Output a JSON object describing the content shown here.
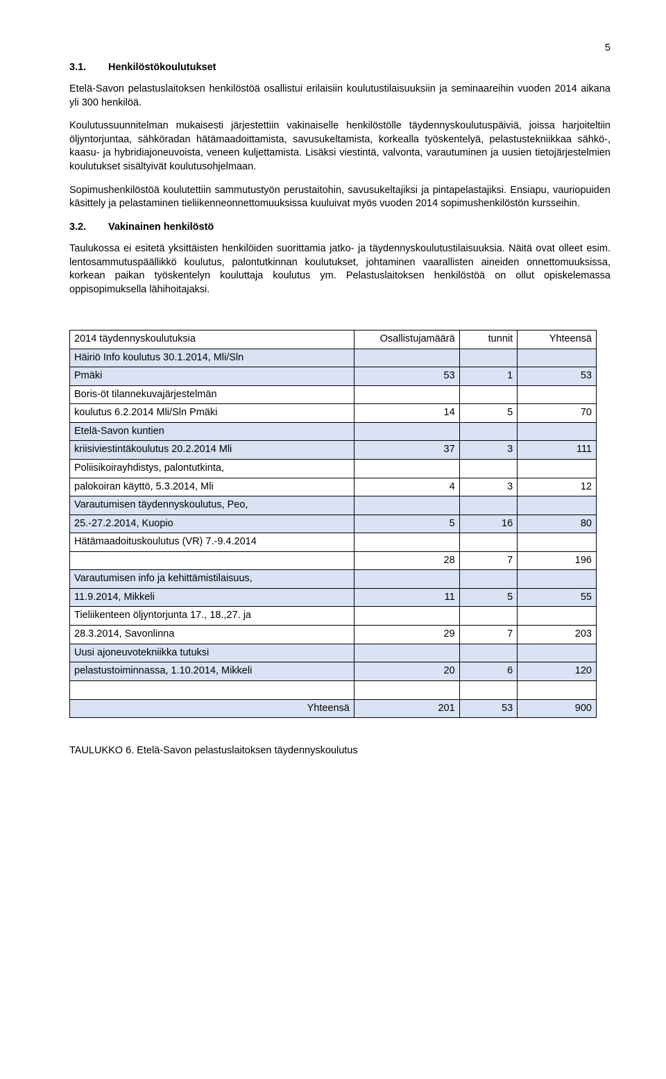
{
  "page_number": "5",
  "section_3_1": {
    "number": "3.1.",
    "title": "Henkilöstökoulutukset",
    "para1": "Etelä-Savon pelastuslaitoksen henkilöstöä osallistui erilaisiin koulutustilaisuuksiin ja seminaareihin vuoden 2014 aikana yli 300 henkilöä.",
    "para2": "Koulutussuunnitelman mukaisesti järjestettiin vakinaiselle henkilöstölle täydennyskoulutuspäiviä, joissa harjoiteltiin öljyntorjuntaa, sähköradan hätämaadoittamista, savusukeltamista, korkealla työskentelyä, pelastustekniikkaa sähkö-, kaasu- ja hybridiajoneuvoista, veneen kuljettamista. Lisäksi viestintä, valvonta, varautuminen ja uusien tietojärjestelmien koulutukset sisältyivät koulutusohjelmaan.",
    "para3": "Sopimushenkilöstöä koulutettiin sammutustyön perustaitohin, savusukeltajiksi ja pintapelastajiksi. Ensiapu, vauriopuiden käsittely ja pelastaminen tieliikenneonnettomuuksissa kuuluivat myös vuoden 2014 sopimushenkilöstön kursseihin."
  },
  "section_3_2": {
    "number": "3.2.",
    "title": "Vakinainen henkilöstö",
    "para1": "Taulukossa ei esitetä yksittäisten henkilöiden suorittamia jatko- ja täydennyskoulutustilaisuuksia. Näitä ovat olleet esim. lentosammutuspäällikkö koulutus, palontutkinnan koulutukset, johtaminen vaarallisten aineiden onnettomuuksissa, korkean paikan työskentelyn kouluttaja koulutus ym. Pelastuslaitoksen henkilöstöä on ollut opiskelemassa oppisopimuksella lähihoitajaksi."
  },
  "table": {
    "header": {
      "c1": "2014 täydennyskoulutuksia",
      "c2": "Osallistujamäärä",
      "c3": "tunnit",
      "c4": "Yhteensä"
    },
    "rows": [
      {
        "shaded": true,
        "c1a": "Häiriö Info koulutus 30.1.2014, Mli/Sln",
        "c1b": "Pmäki",
        "n1": "53",
        "n2": "1",
        "n3": "53"
      },
      {
        "shaded": false,
        "c1a": "Boris-öt tilannekuvajärjestelmän",
        "c1b": "koulutus 6.2.2014 Mli/Sln Pmäki",
        "n1": "14",
        "n2": "5",
        "n3": "70"
      },
      {
        "shaded": true,
        "c1a": "Etelä-Savon kuntien",
        "c1b": "kriisiviestintäkoulutus 20.2.2014 Mli",
        "n1": "37",
        "n2": "3",
        "n3": "111"
      },
      {
        "shaded": false,
        "c1a": "Poliisikoirayhdistys, palontutkinta,",
        "c1b": "palokoiran käyttö, 5.3.2014, Mli",
        "n1": "4",
        "n2": "3",
        "n3": "12"
      },
      {
        "shaded": true,
        "c1a": "Varautumisen täydennyskoulutus, Peo,",
        "c1b": "25.-27.2.2014, Kuopio",
        "n1": "5",
        "n2": "16",
        "n3": "80"
      },
      {
        "shaded": false,
        "c1a": "Hätämaadoituskoulutus (VR) 7.-9.4.2014",
        "c1b": "",
        "n1": "28",
        "n2": "7",
        "n3": "196"
      },
      {
        "shaded": true,
        "c1a": "Varautumisen info ja kehittämistilaisuus,",
        "c1b": "11.9.2014, Mikkeli",
        "n1": "11",
        "n2": "5",
        "n3": "55"
      },
      {
        "shaded": false,
        "c1a": "Tieliikenteen öljyntorjunta 17., 18.,27. ja",
        "c1b": "28.3.2014, Savonlinna",
        "n1": "29",
        "n2": "7",
        "n3": "203"
      },
      {
        "shaded": true,
        "c1a": "Uusi ajoneuvotekniikka tutuksi",
        "c1b": "pelastustoiminnassa, 1.10.2014, Mikkeli",
        "n1": "20",
        "n2": "6",
        "n3": "120"
      }
    ],
    "total": {
      "label": "Yhteensä",
      "n1": "201",
      "n2": "53",
      "n3": "900"
    }
  },
  "caption": "TAULUKKO 6. Etelä-Savon pelastuslaitoksen täydennyskoulutus"
}
